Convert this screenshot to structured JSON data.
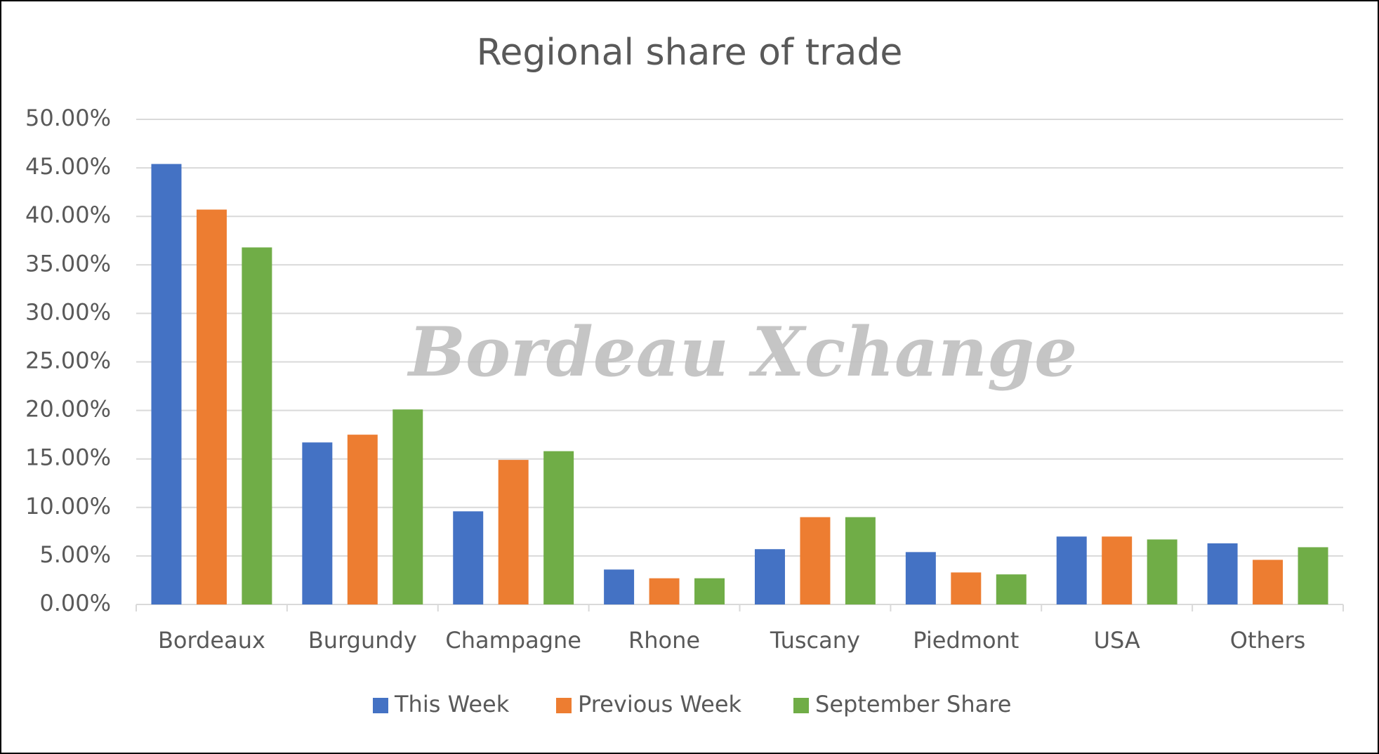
{
  "chart_data": {
    "type": "bar",
    "title": "Regional share of trade",
    "watermark": "Bordeau Xchange",
    "categories": [
      "Bordeaux",
      "Burgundy",
      "Champagne",
      "Rhone",
      "Tuscany",
      "Piedmont",
      "USA",
      "Others"
    ],
    "series": [
      {
        "name": "This Week",
        "color": "#4472c4",
        "values": [
          45.4,
          16.7,
          9.6,
          3.6,
          5.7,
          5.4,
          7.0,
          6.3
        ]
      },
      {
        "name": "Previous Week",
        "color": "#ed7d31",
        "values": [
          40.7,
          17.5,
          14.9,
          2.7,
          9.0,
          3.3,
          7.0,
          4.6
        ]
      },
      {
        "name": "September Share",
        "color": "#70ad47",
        "values": [
          36.8,
          20.1,
          15.8,
          2.7,
          9.0,
          3.1,
          6.7,
          5.9
        ]
      }
    ],
    "ylim": [
      0,
      50
    ],
    "yticks": [
      {
        "value": 0,
        "label": "0.00%"
      },
      {
        "value": 5,
        "label": "5.00%"
      },
      {
        "value": 10,
        "label": "10.00%"
      },
      {
        "value": 15,
        "label": "15.00%"
      },
      {
        "value": 20,
        "label": "20.00%"
      },
      {
        "value": 25,
        "label": "25.00%"
      },
      {
        "value": 30,
        "label": "30.00%"
      },
      {
        "value": 35,
        "label": "35.00%"
      },
      {
        "value": 40,
        "label": "40.00%"
      },
      {
        "value": 45,
        "label": "45.00%"
      },
      {
        "value": 50,
        "label": "50.00%"
      }
    ],
    "grid": true,
    "legend": "bottom"
  }
}
